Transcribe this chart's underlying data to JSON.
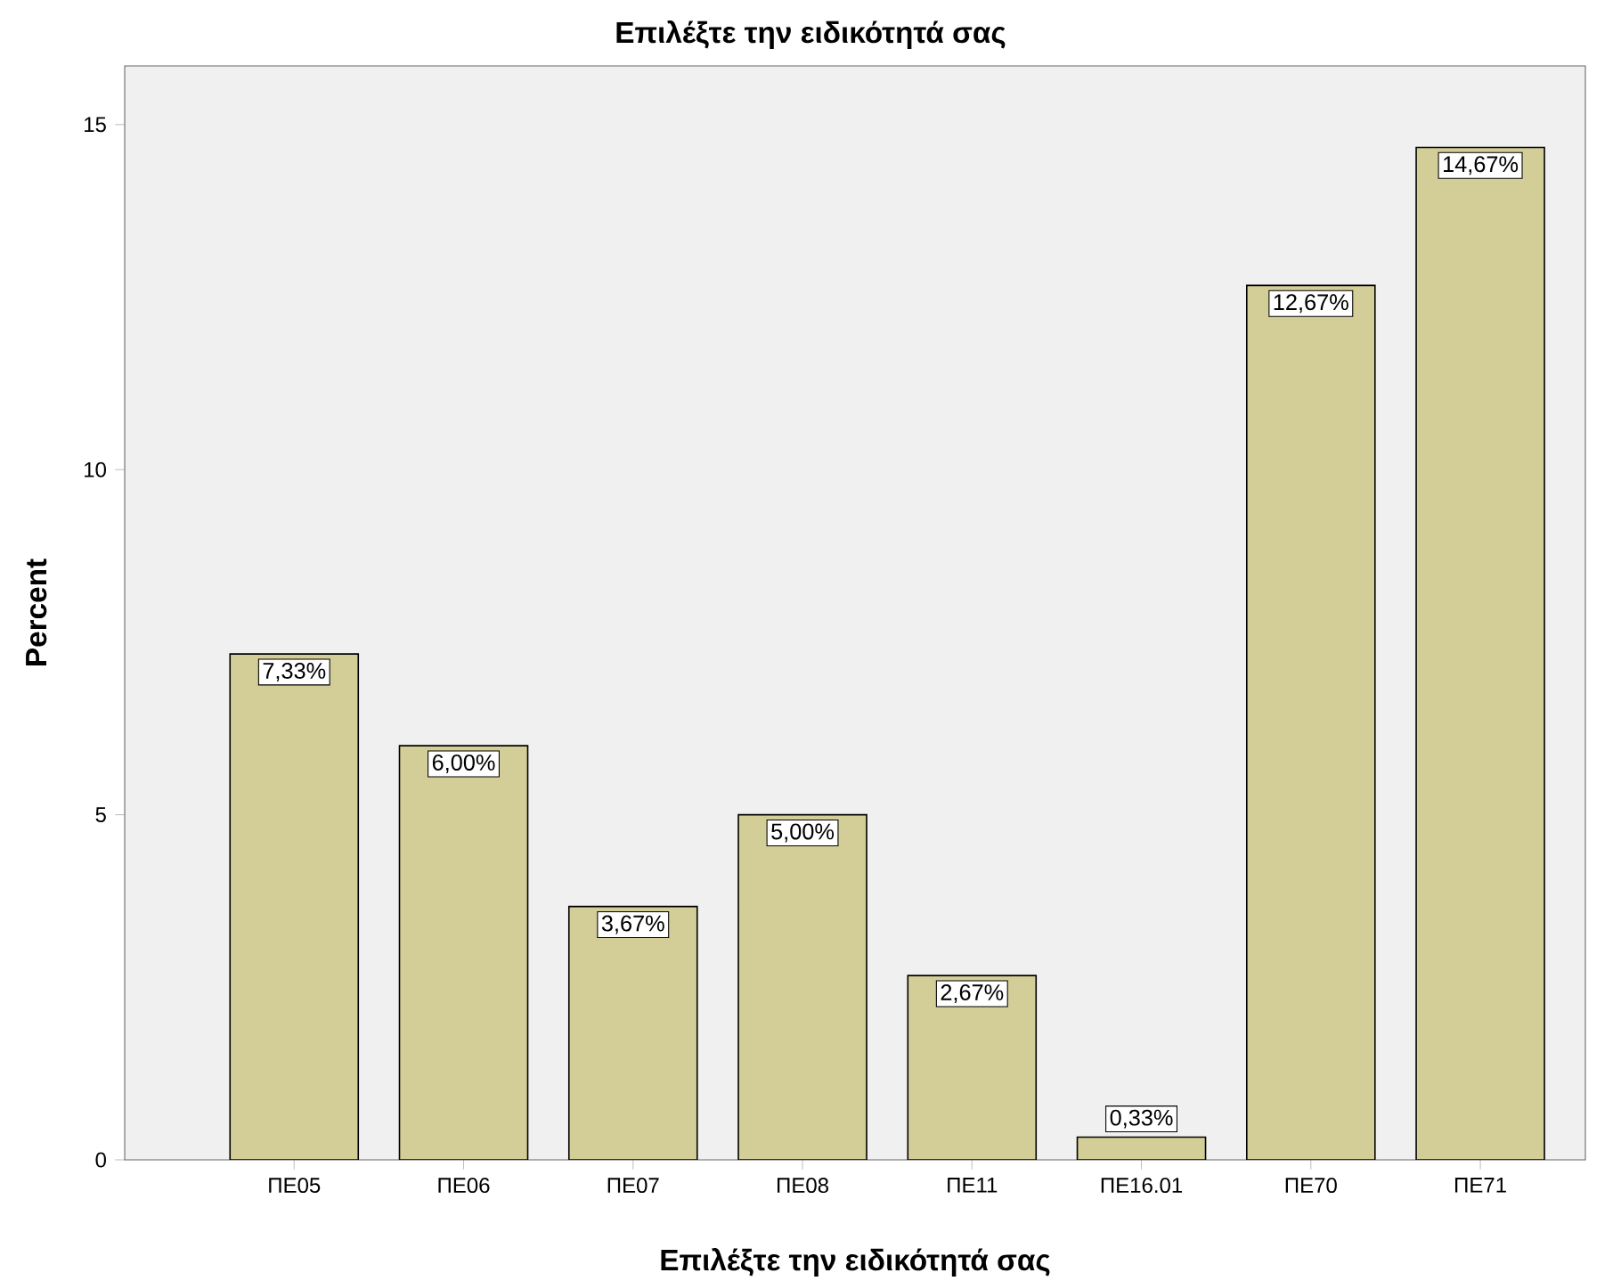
{
  "chart_data": {
    "type": "bar",
    "title": "Επιλέξτε την ειδικότητά σας",
    "xlabel": "Επιλέξτε την ειδικότητά σας",
    "ylabel": "Percent",
    "categories": [
      "ΠΕ05",
      "ΠΕ06",
      "ΠΕ07",
      "ΠΕ08",
      "ΠΕ11",
      "ΠΕ16.01",
      "ΠΕ70",
      "ΠΕ71"
    ],
    "values": [
      7.33,
      6.0,
      3.67,
      5.0,
      2.67,
      0.33,
      12.67,
      14.67
    ],
    "value_labels": [
      "7,33%",
      "6,00%",
      "3,67%",
      "5,00%",
      "2,67%",
      "0,33%",
      "12,67%",
      "14,67%"
    ],
    "color": "#d3ce97",
    "ylim": [
      0,
      15.85
    ],
    "yticks": [
      0,
      5,
      10,
      15
    ]
  }
}
